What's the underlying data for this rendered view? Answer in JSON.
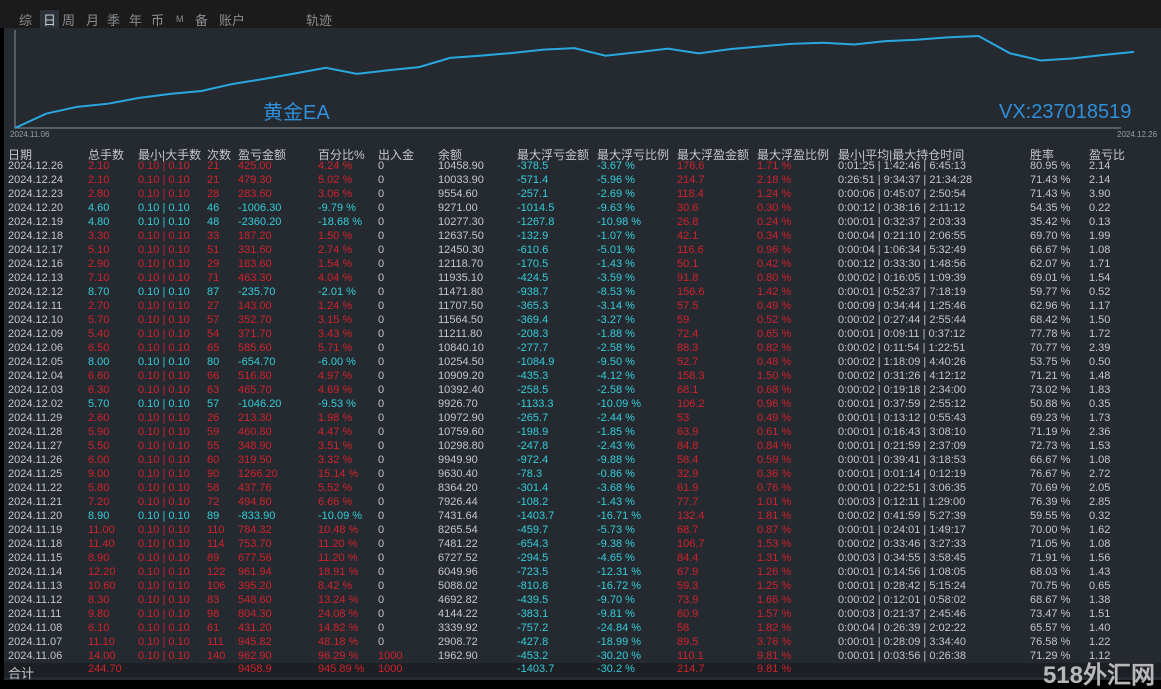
{
  "tabs": [
    "综",
    "日",
    "周",
    "月",
    "季",
    "年",
    "币",
    "M",
    "备",
    "账户",
    "轨迹"
  ],
  "active_tab": "日",
  "chart": {
    "watermark_left": "黄金EA",
    "watermark_right": "VX:237018519",
    "start_date": "2024.11.06",
    "end_date": "2024.12.26",
    "line_color": "#29a8e0"
  },
  "columns": [
    "日期",
    "总手数",
    "最小|大手数",
    "次数",
    "盈亏金额",
    "百分比%",
    "出入金",
    "余额",
    "最大浮亏金额",
    "最大浮亏比例",
    "最大浮盈金额",
    "最大浮盈比例",
    "最小|平均|最大持仓时间",
    "胜率",
    "盈亏比"
  ],
  "rows": [
    [
      "2024.12.26",
      "2.10",
      "0.10 | 0.10",
      "21",
      "425.00",
      "4.24 %",
      "0",
      "10458.90",
      "-378.5",
      "-3.67 %",
      "176.6",
      "1.71 %",
      "0:01:25 | 1:42:46 | 6:45:13",
      "80.95 %",
      "2.14"
    ],
    [
      "2024.12.24",
      "2.10",
      "0.10 | 0.10",
      "21",
      "479.30",
      "5.02 %",
      "0",
      "10033.90",
      "-571.4",
      "-5.96 %",
      "214.7",
      "2.18 %",
      "0:26:51 | 9:34:37 | 21:34:28",
      "71.43 %",
      "2.14"
    ],
    [
      "2024.12.23",
      "2.80",
      "0.10 | 0.10",
      "28",
      "283.60",
      "3.06 %",
      "0",
      "9554.60",
      "-257.1",
      "-2.69 %",
      "118.4",
      "1.24 %",
      "0:00:06 | 0:45:07 | 2:50:54",
      "71.43 %",
      "3.90"
    ],
    [
      "2024.12.20",
      "4.60",
      "0.10 | 0.10",
      "46",
      "-1006.30",
      "-9.79 %",
      "0",
      "9271.00",
      "-1014.5",
      "-9.63 %",
      "30.6",
      "0.30 %",
      "0:00:12 | 0:38:16 | 2:11:12",
      "54.35 %",
      "0.22"
    ],
    [
      "2024.12.19",
      "4.80",
      "0.10 | 0.10",
      "48",
      "-2360.20",
      "-18.68 %",
      "0",
      "10277.30",
      "-1267.8",
      "-10.98 %",
      "26.8",
      "0.24 %",
      "0:00:01 | 0:32:37 | 2:03:33",
      "35.42 %",
      "0.13"
    ],
    [
      "2024.12.18",
      "3.30",
      "0.10 | 0.10",
      "33",
      "187.20",
      "1.50 %",
      "0",
      "12637.50",
      "-132.9",
      "-1.07 %",
      "42.1",
      "0.34 %",
      "0:00:04 | 0:21:10 | 2:06:55",
      "69.70 %",
      "1.99"
    ],
    [
      "2024.12.17",
      "5.10",
      "0.10 | 0.10",
      "51",
      "331.60",
      "2.74 %",
      "0",
      "12450.30",
      "-610.6",
      "-5.01 %",
      "116.6",
      "0.96 %",
      "0:00:04 | 1:06:34 | 5:32:49",
      "66.67 %",
      "1.08"
    ],
    [
      "2024.12.16",
      "2.90",
      "0.10 | 0.10",
      "29",
      "183.60",
      "1.54 %",
      "0",
      "12118.70",
      "-170.5",
      "-1.43 %",
      "50.1",
      "0.42 %",
      "0:00:12 | 0:33:30 | 1:48:56",
      "62.07 %",
      "1.71"
    ],
    [
      "2024.12.13",
      "7.10",
      "0.10 | 0.10",
      "71",
      "463.30",
      "4.04 %",
      "0",
      "11935.10",
      "-424.5",
      "-3.59 %",
      "91.8",
      "0.80 %",
      "0:00:02 | 0:16:05 | 1:09:39",
      "69.01 %",
      "1.54"
    ],
    [
      "2024.12.12",
      "8.70",
      "0.10 | 0.10",
      "87",
      "-235.70",
      "-2.01 %",
      "0",
      "11471.80",
      "-938.7",
      "-8.53 %",
      "156.6",
      "1.42 %",
      "0:00:01 | 0:52:37 | 7:18:19",
      "59.77 %",
      "0.52"
    ],
    [
      "2024.12.11",
      "2.70",
      "0.10 | 0.10",
      "27",
      "143.00",
      "1.24 %",
      "0",
      "11707.50",
      "-365.3",
      "-3.14 %",
      "57.5",
      "0.49 %",
      "0:00:09 | 0:34:44 | 1:25:46",
      "62.96 %",
      "1.17"
    ],
    [
      "2024.12.10",
      "5.70",
      "0.10 | 0.10",
      "57",
      "352.70",
      "3.15 %",
      "0",
      "11564.50",
      "-369.4",
      "-3.27 %",
      "59",
      "0.52 %",
      "0:00:02 | 0:27:44 | 2:55:44",
      "68.42 %",
      "1.50"
    ],
    [
      "2024.12.09",
      "5.40",
      "0.10 | 0.10",
      "54",
      "371.70",
      "3.43 %",
      "0",
      "11211.80",
      "-208.3",
      "-1.88 %",
      "72.4",
      "0.65 %",
      "0:00:01 | 0:09:11 | 0:37:12",
      "77.78 %",
      "1.72"
    ],
    [
      "2024.12.06",
      "6.50",
      "0.10 | 0.10",
      "65",
      "585.60",
      "5.71 %",
      "0",
      "10840.10",
      "-277.7",
      "-2.58 %",
      "88.3",
      "0.82 %",
      "0:00:02 | 0:11:54 | 1:22:51",
      "70.77 %",
      "2.39"
    ],
    [
      "2024.12.05",
      "8.00",
      "0.10 | 0.10",
      "80",
      "-654.70",
      "-6.00 %",
      "0",
      "10254.50",
      "-1084.9",
      "-9.50 %",
      "52.7",
      "0.48 %",
      "0:00:02 | 1:18:09 | 4:40:26",
      "53.75 %",
      "0.50"
    ],
    [
      "2024.12.04",
      "6.60",
      "0.10 | 0.10",
      "66",
      "516.80",
      "4.97 %",
      "0",
      "10909.20",
      "-435.3",
      "-4.12 %",
      "158.3",
      "1.50 %",
      "0:00:02 | 0:31:26 | 4:12:12",
      "71.21 %",
      "1.48"
    ],
    [
      "2024.12.03",
      "6.30",
      "0.10 | 0.10",
      "63",
      "465.70",
      "4.69 %",
      "0",
      "10392.40",
      "-258.5",
      "-2.58 %",
      "68.1",
      "0.68 %",
      "0:00:02 | 0:19:18 | 2:34:00",
      "73.02 %",
      "1.83"
    ],
    [
      "2024.12.02",
      "5.70",
      "0.10 | 0.10",
      "57",
      "-1046.20",
      "-9.53 %",
      "0",
      "9926.70",
      "-1133.3",
      "-10.09 %",
      "106.2",
      "0.96 %",
      "0:00:01 | 0:37:59 | 2:55:12",
      "50.88 %",
      "0.35"
    ],
    [
      "2024.11.29",
      "2.60",
      "0.10 | 0.10",
      "26",
      "213.30",
      "1.98 %",
      "0",
      "10972.90",
      "-265.7",
      "-2.44 %",
      "53",
      "0.49 %",
      "0:00:01 | 0:13:12 | 0:55:43",
      "69.23 %",
      "1.73"
    ],
    [
      "2024.11.28",
      "5.90",
      "0.10 | 0.10",
      "59",
      "460.80",
      "4.47 %",
      "0",
      "10759.60",
      "-198.9",
      "-1.85 %",
      "63.9",
      "0.61 %",
      "0:00:01 | 0:16:43 | 3:08:10",
      "71.19 %",
      "2.36"
    ],
    [
      "2024.11.27",
      "5.50",
      "0.10 | 0.10",
      "55",
      "348.90",
      "3.51 %",
      "0",
      "10298.80",
      "-247.8",
      "-2.43 %",
      "84.8",
      "0.84 %",
      "0:00:01 | 0:21:59 | 2:37:09",
      "72.73 %",
      "1.53"
    ],
    [
      "2024.11.26",
      "6.00",
      "0.10 | 0.10",
      "60",
      "319.50",
      "3.32 %",
      "0",
      "9949.90",
      "-972.4",
      "-9.88 %",
      "58.4",
      "0.59 %",
      "0:00:01 | 0:39:41 | 3:18:53",
      "66.67 %",
      "1.08"
    ],
    [
      "2024.11.25",
      "9.00",
      "0.10 | 0.10",
      "90",
      "1266.20",
      "15.14 %",
      "0",
      "9630.40",
      "-78.3",
      "-0.86 %",
      "32.9",
      "0.36 %",
      "0:00:01 | 0:01:14 | 0:12:19",
      "76.67 %",
      "2.72"
    ],
    [
      "2024.11.22",
      "5.80",
      "0.10 | 0.10",
      "58",
      "437.76",
      "5.52 %",
      "0",
      "8364.20",
      "-301.4",
      "-3.68 %",
      "61.9",
      "0.76 %",
      "0:00:01 | 0:22:51 | 3:06:35",
      "70.69 %",
      "2.05"
    ],
    [
      "2024.11.21",
      "7.20",
      "0.10 | 0.10",
      "72",
      "494.80",
      "6.66 %",
      "0",
      "7926.44",
      "-108.2",
      "-1.43 %",
      "77.7",
      "1.01 %",
      "0:00:03 | 0:12:11 | 1:29:00",
      "76.39 %",
      "2.85"
    ],
    [
      "2024.11.20",
      "8.90",
      "0.10 | 0.10",
      "89",
      "-833.90",
      "-10.09 %",
      "0",
      "7431.64",
      "-1403.7",
      "-16.71 %",
      "132.4",
      "1.81 %",
      "0:00:02 | 0:41:59 | 5:27:39",
      "59.55 %",
      "0.32"
    ],
    [
      "2024.11.19",
      "11.00",
      "0.10 | 0.10",
      "110",
      "784.32",
      "10.48 %",
      "0",
      "8265.54",
      "-459.7",
      "-5.73 %",
      "68.7",
      "0.87 %",
      "0:00:01 | 0:24:01 | 1:49:17",
      "70.00 %",
      "1.62"
    ],
    [
      "2024.11.18",
      "11.40",
      "0.10 | 0.10",
      "114",
      "753.70",
      "11.20 %",
      "0",
      "7481.22",
      "-654.3",
      "-9.38 %",
      "106.7",
      "1.53 %",
      "0:00:02 | 0:33:46 | 3:27:33",
      "71.05 %",
      "1.08"
    ],
    [
      "2024.11.15",
      "8.90",
      "0.10 | 0.10",
      "89",
      "677.56",
      "11.20 %",
      "0",
      "6727.52",
      "-294.5",
      "-4.65 %",
      "84.4",
      "1.31 %",
      "0:00:03 | 0:34:55 | 3:58:45",
      "71.91 %",
      "1.56"
    ],
    [
      "2024.11.14",
      "12.20",
      "0.10 | 0.10",
      "122",
      "961.94",
      "18.91 %",
      "0",
      "6049.96",
      "-723.5",
      "-12.31 %",
      "67.9",
      "1.26 %",
      "0:00:01 | 0:14:56 | 1:08:05",
      "68.03 %",
      "1.43"
    ],
    [
      "2024.11.13",
      "10.60",
      "0.10 | 0.10",
      "106",
      "395.20",
      "8.42 %",
      "0",
      "5088.02",
      "-810.8",
      "-16.72 %",
      "59.3",
      "1.25 %",
      "0:00:01 | 0:28:42 | 5:15:24",
      "70.75 %",
      "0.65"
    ],
    [
      "2024.11.12",
      "8.30",
      "0.10 | 0.10",
      "83",
      "548.60",
      "13.24 %",
      "0",
      "4692.82",
      "-439.5",
      "-9.70 %",
      "73.9",
      "1.66 %",
      "0:00:02 | 0:12:01 | 0:58:02",
      "68.67 %",
      "1.38"
    ],
    [
      "2024.11.11",
      "9.80",
      "0.10 | 0.10",
      "98",
      "804.30",
      "24.08 %",
      "0",
      "4144.22",
      "-383.1",
      "-9.81 %",
      "60.9",
      "1.57 %",
      "0:00:03 | 0:21:37 | 2:45:46",
      "73.47 %",
      "1.51"
    ],
    [
      "2024.11.08",
      "6.10",
      "0.10 | 0.10",
      "61",
      "431.20",
      "14.82 %",
      "0",
      "3339.92",
      "-757.2",
      "-24.84 %",
      "58",
      "1.82 %",
      "0:00:04 | 0:26:39 | 2:02:22",
      "65.57 %",
      "1.40"
    ],
    [
      "2024.11.07",
      "11.10",
      "0.10 | 0.10",
      "111",
      "945.82",
      "48.18 %",
      "0",
      "2908.72",
      "-427.8",
      "-18.99 %",
      "89.5",
      "3.76 %",
      "0:00:01 | 0:28:09 | 3:34:40",
      "76.58 %",
      "1.22"
    ],
    [
      "2024.11.06",
      "14.00",
      "0.10 | 0.10",
      "140",
      "962.90",
      "96.29 %",
      "1000",
      "1962.90",
      "-453.2",
      "-30.20 %",
      "110.1",
      "9.81 %",
      "0:00:01 | 0:03:56 | 0:26:38",
      "71.29 %",
      "1.12"
    ]
  ],
  "total": {
    "label": "合计",
    "lots": "244.70",
    "pnl": "9458.9",
    "pct": "945.89 %",
    "inout": "1000",
    "max_float_loss": "-1403.7",
    "max_float_loss_pct": "-30.2 %",
    "max_float_profit": "214.7",
    "max_float_profit_pct": "9.81 %"
  },
  "brand": "518外汇网",
  "colors": {
    "profit": "#d0222c",
    "loss": "#35cdd8",
    "text": "#c4c6c8",
    "panel": "#252a31"
  }
}
